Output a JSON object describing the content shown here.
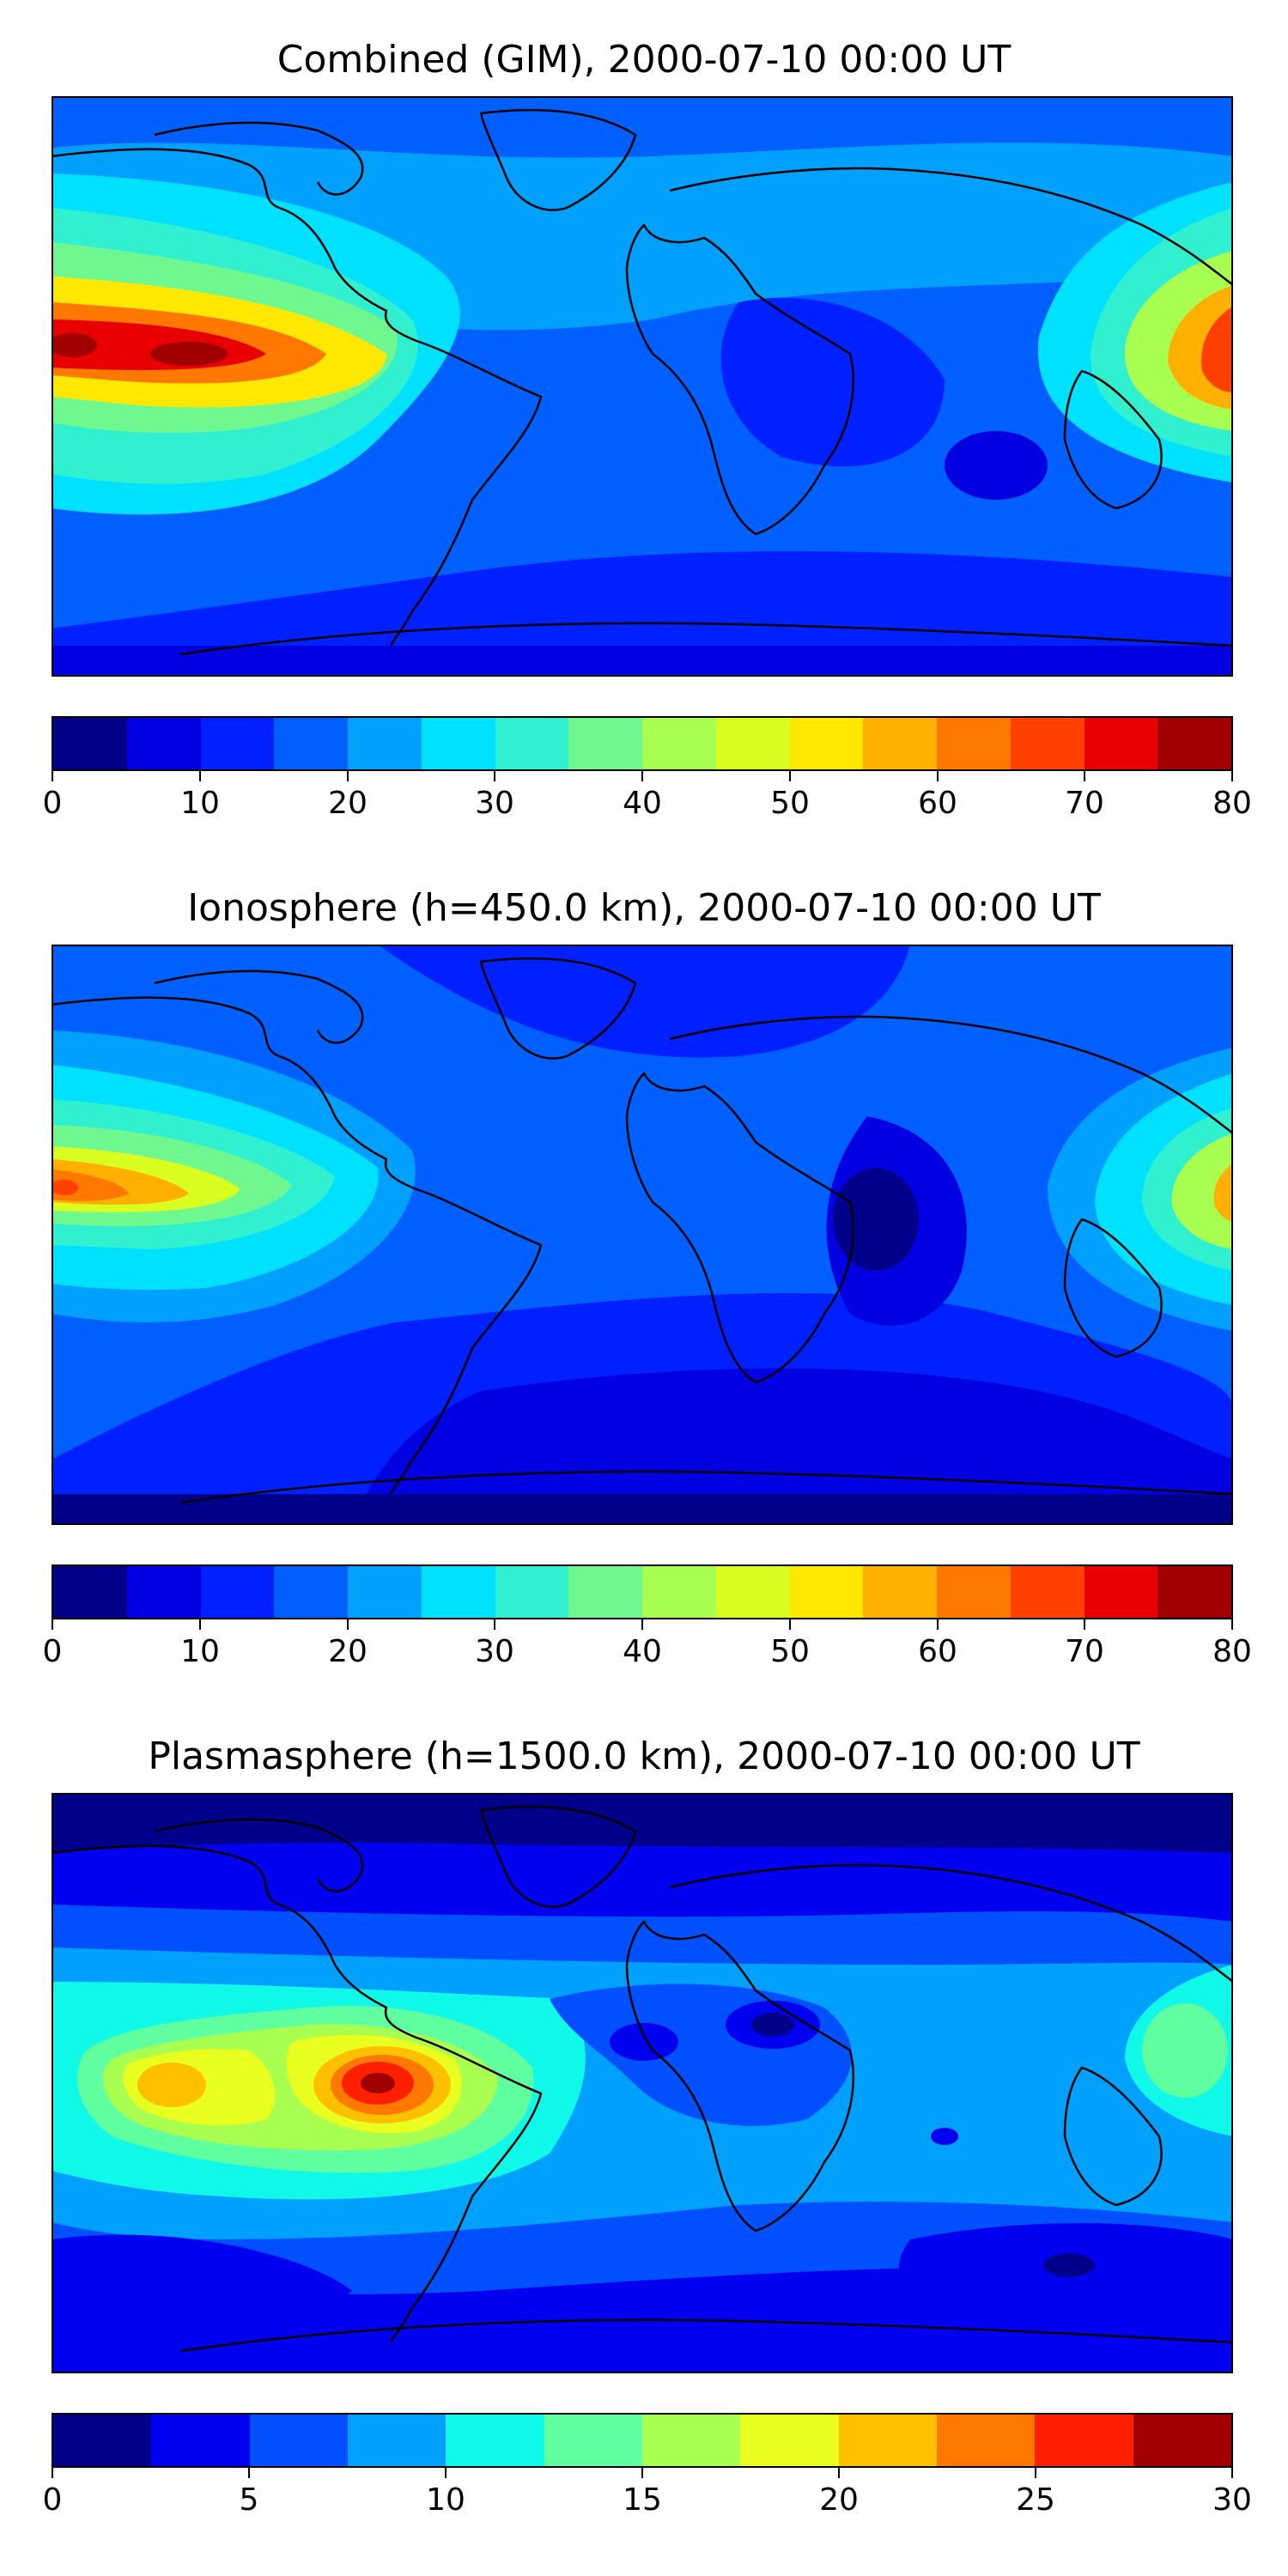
{
  "panels": [
    {
      "title": "Combined (GIM), 2000-07-10 00:00 UT",
      "colorbar": {
        "colors": [
          "#00008b",
          "#0000e0",
          "#0020ff",
          "#0060ff",
          "#00a0ff",
          "#00e0ff",
          "#30f0d0",
          "#70f890",
          "#a8ff50",
          "#d8ff20",
          "#ffe800",
          "#ffb000",
          "#ff7800",
          "#ff4000",
          "#e80000",
          "#a00000"
        ],
        "ticks": [
          "0",
          "10",
          "20",
          "30",
          "40",
          "50",
          "60",
          "70",
          "80"
        ]
      }
    },
    {
      "title": "Ionosphere  (h=450.0 km), 2000-07-10 00:00 UT",
      "colorbar": {
        "colors": [
          "#00008b",
          "#0000e0",
          "#0020ff",
          "#0060ff",
          "#00a0ff",
          "#00e0ff",
          "#30f0d0",
          "#70f890",
          "#a8ff50",
          "#d8ff20",
          "#ffe800",
          "#ffb000",
          "#ff7800",
          "#ff4000",
          "#e80000",
          "#a00000"
        ],
        "ticks": [
          "0",
          "10",
          "20",
          "30",
          "40",
          "50",
          "60",
          "70",
          "80"
        ]
      }
    },
    {
      "title": "Plasmasphere (h=1500.0 km), 2000-07-10 00:00 UT",
      "colorbar": {
        "colors": [
          "#00008b",
          "#0000f0",
          "#0050ff",
          "#00a0ff",
          "#10f8e8",
          "#60ffa0",
          "#a8ff50",
          "#e8ff20",
          "#ffc000",
          "#ff7800",
          "#ff2000",
          "#a00000"
        ],
        "ticks": [
          "0",
          "5",
          "10",
          "15",
          "20",
          "25",
          "30"
        ]
      }
    }
  ]
}
